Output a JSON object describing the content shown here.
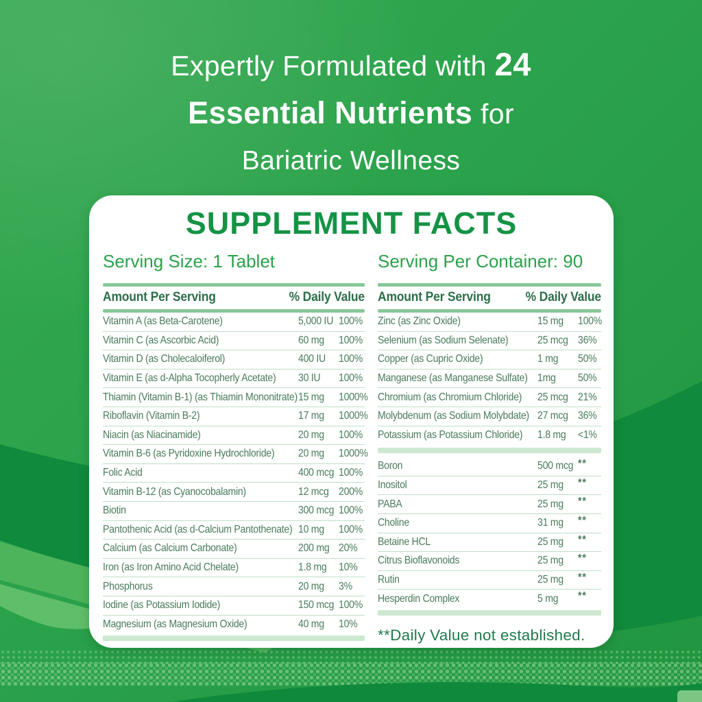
{
  "headline": {
    "line1_regular": "Expertly Formulated with ",
    "line1_bold": "24",
    "line2_bold": "Essential Nutrients",
    "line2_regular": " for",
    "line3": "Bariatric Wellness"
  },
  "panel": {
    "title": "SUPPLEMENT FACTS",
    "serving_size": "Serving Size: 1 Tablet",
    "servings_per_container": "Serving Per Container: 90",
    "column_headers": {
      "amount": "Amount Per Serving",
      "daily_value": "% Daily Value"
    },
    "footnote": "**Daily Value not established."
  },
  "left_table": {
    "rows": [
      {
        "name": "Vitamin A (as  Beta-Carotene)",
        "amount": "5,000 IU",
        "dv": "100%"
      },
      {
        "name": "Vitamin C (as Ascorbic Acid)",
        "amount": "60 mg",
        "dv": "100%"
      },
      {
        "name": "Vitamin D (as Cholecaloiferol)",
        "amount": "400 IU",
        "dv": "100%"
      },
      {
        "name": "Vitamin E (as d-Alpha Tocopherly Acetate)",
        "amount": "30 IU",
        "dv": "100%"
      },
      {
        "name": "Thiamin (Vitamin B-1) (as Thiamin Mononitrate)",
        "amount": "15 mg",
        "dv": "1000%"
      },
      {
        "name": "Riboflavin (Vitamin B-2)",
        "amount": "17 mg",
        "dv": "1000%"
      },
      {
        "name": "Niacin (as Niacinamide)",
        "amount": "20 mg",
        "dv": "100%"
      },
      {
        "name": "Vitamin B-6 (as Pyridoxine Hydrochloride)",
        "amount": "20 mg",
        "dv": "1000%"
      },
      {
        "name": "Folic Acid",
        "amount": "400 mcg",
        "dv": "100%"
      },
      {
        "name": "Vitamin B-12 (as Cyanocobalamin)",
        "amount": "12 mcg",
        "dv": "200%"
      },
      {
        "name": "Biotin",
        "amount": "300 mcg",
        "dv": "100%"
      },
      {
        "name": "Pantothenic Acid (as d-Calcium Pantothenate)",
        "amount": "10 mg",
        "dv": "100%"
      },
      {
        "name": "Calcium (as Calcium Carbonate)",
        "amount": "200 mg",
        "dv": "20%"
      },
      {
        "name": "Iron (as Iron Amino Acid Chelate)",
        "amount": "1.8 mg",
        "dv": "10%"
      },
      {
        "name": "Phosphorus",
        "amount": "20 mg",
        "dv": "3%"
      },
      {
        "name": "Iodine (as Potassium Iodide)",
        "amount": "150 mcg",
        "dv": "100%"
      },
      {
        "name": "Magnesium (as Magnesium Oxide)",
        "amount": "40 mg",
        "dv": "10%"
      }
    ]
  },
  "right_table": {
    "minerals": [
      {
        "name": "Zinc (as Zinc Oxide)",
        "amount": "15 mg",
        "dv": "100%"
      },
      {
        "name": "Selenium (as Sodium Selenate)",
        "amount": "25 mcg",
        "dv": "36%"
      },
      {
        "name": "Copper (as Cupric Oxide)",
        "amount": "1 mg",
        "dv": "50%"
      },
      {
        "name": "Manganese (as Manganese Sulfate)",
        "amount": "1mg",
        "dv": "50%"
      },
      {
        "name": "Chromium (as Chromium Chloride)",
        "amount": "25 mcg",
        "dv": "21%"
      },
      {
        "name": "Molybdenum (as Sodium Molybdate)",
        "amount": "27 mcg",
        "dv": "36%"
      },
      {
        "name": "Potassium (as Potassium Chloride)",
        "amount": "1.8 mg",
        "dv": "<1%"
      }
    ],
    "other_nutrients": [
      {
        "name": "Boron",
        "amount": "500 mcg",
        "dv": "**"
      },
      {
        "name": "Inositol",
        "amount": "25 mg",
        "dv": "**"
      },
      {
        "name": "PABA",
        "amount": "25 mg",
        "dv": "**"
      },
      {
        "name": "Choline",
        "amount": "31 mg",
        "dv": "**"
      },
      {
        "name": "Betaine HCL",
        "amount": "25 mg",
        "dv": "**"
      },
      {
        "name": "Citrus Bioflavonoids",
        "amount": "25 mg",
        "dv": "**"
      },
      {
        "name": "Rutin",
        "amount": "25 mg",
        "dv": "**"
      },
      {
        "name": "Hesperdin Complex",
        "amount": "5 mg",
        "dv": "**"
      }
    ]
  },
  "colors": {
    "background_green": "#2aa14b",
    "dark_wave_green": "#108a3c",
    "light_wave_green": "#4eb45b",
    "headline_text": "#ffffff",
    "title_green": "#149345",
    "serving_text_green": "#2aa14b",
    "header_text_green": "#2d6e4a",
    "row_text_green": "#4a7b5c",
    "header_bar_green": "#87c79a",
    "thick_bar_green": "#cde8d1",
    "separator_green": "#bfdfc7"
  }
}
